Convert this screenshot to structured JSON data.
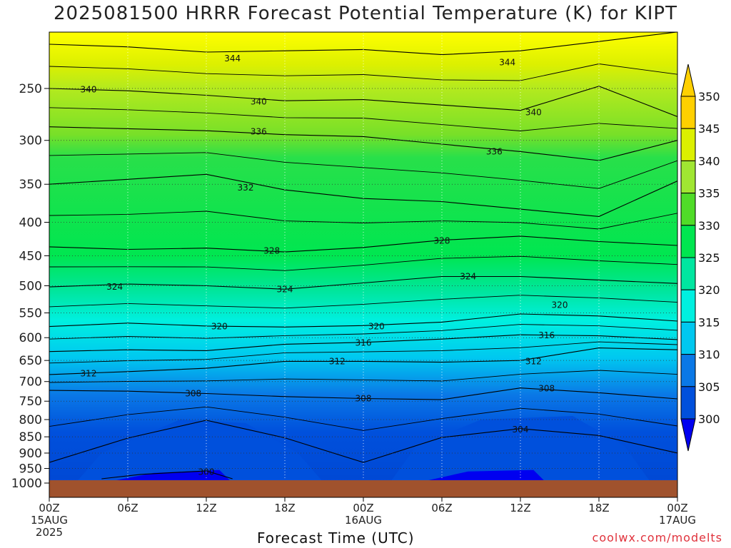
{
  "title": "2025081500 HRRR Forecast Potential Temperature (K) for KIPT",
  "xlabel": "Forecast Time (UTC)",
  "credit": "coolwx.com/modelts",
  "colors": {
    "300": "#0000f0",
    "305": "#0050dc",
    "310": "#0a78e6",
    "315": "#00c8f0",
    "320": "#00f0e0",
    "325": "#00e6a0",
    "330": "#00e650",
    "335": "#50dc28",
    "340": "#a0e632",
    "345": "#dcf000",
    "350": "#ffd000",
    "ground": "#a0522d"
  },
  "chart_data": {
    "type": "heatmap",
    "title": "2025081500 HRRR Forecast Potential Temperature (K) for KIPT",
    "xlabel": "Forecast Time (UTC)",
    "ylabel": "",
    "y_scale": "log-pressure",
    "y_ticks": [
      250,
      300,
      350,
      400,
      450,
      500,
      550,
      600,
      650,
      700,
      750,
      800,
      850,
      900,
      950,
      1000
    ],
    "x_ticks": [
      {
        "hour": 0,
        "lines": [
          "00Z",
          "15AUG",
          "2025"
        ]
      },
      {
        "hour": 6,
        "lines": [
          "06Z"
        ]
      },
      {
        "hour": 12,
        "lines": [
          "12Z"
        ]
      },
      {
        "hour": 18,
        "lines": [
          "18Z"
        ]
      },
      {
        "hour": 24,
        "lines": [
          "00Z",
          "16AUG"
        ]
      },
      {
        "hour": 30,
        "lines": [
          "06Z"
        ]
      },
      {
        "hour": 36,
        "lines": [
          "12Z"
        ]
      },
      {
        "hour": 42,
        "lines": [
          "18Z"
        ]
      },
      {
        "hour": 48,
        "lines": [
          "00Z",
          "17AUG"
        ]
      }
    ],
    "colorbar": {
      "levels": [
        300,
        305,
        310,
        315,
        320,
        325,
        330,
        335,
        340,
        345,
        350
      ],
      "labels": [
        "300",
        "305",
        "310",
        "315",
        "320",
        "325",
        "330",
        "335",
        "340",
        "345",
        "350"
      ]
    },
    "contour_labels": [
      {
        "value": "344",
        "hour": 14,
        "p": 225
      },
      {
        "value": "344",
        "hour": 35,
        "p": 228
      },
      {
        "value": "340",
        "hour": 3,
        "p": 251
      },
      {
        "value": "340",
        "hour": 16,
        "p": 262
      },
      {
        "value": "340",
        "hour": 37,
        "p": 272
      },
      {
        "value": "336",
        "hour": 16,
        "p": 291
      },
      {
        "value": "336",
        "hour": 34,
        "p": 312
      },
      {
        "value": "332",
        "hour": 15,
        "p": 354
      },
      {
        "value": "328",
        "hour": 17,
        "p": 442
      },
      {
        "value": "328",
        "hour": 30,
        "p": 427
      },
      {
        "value": "324",
        "hour": 5,
        "p": 502
      },
      {
        "value": "324",
        "hour": 18,
        "p": 506
      },
      {
        "value": "324",
        "hour": 32,
        "p": 484
      },
      {
        "value": "320",
        "hour": 13,
        "p": 577
      },
      {
        "value": "320",
        "hour": 25,
        "p": 577
      },
      {
        "value": "320",
        "hour": 39,
        "p": 535
      },
      {
        "value": "316",
        "hour": 24,
        "p": 611
      },
      {
        "value": "316",
        "hour": 38,
        "p": 595
      },
      {
        "value": "312",
        "hour": 3,
        "p": 681
      },
      {
        "value": "312",
        "hour": 22,
        "p": 652
      },
      {
        "value": "312",
        "hour": 37,
        "p": 652
      },
      {
        "value": "308",
        "hour": 11,
        "p": 730
      },
      {
        "value": "308",
        "hour": 24,
        "p": 743
      },
      {
        "value": "308",
        "hour": 38,
        "p": 717
      },
      {
        "value": "304",
        "hour": 36,
        "p": 829
      },
      {
        "value": "300",
        "hour": 12,
        "p": 962
      }
    ],
    "isotherms": [
      {
        "value": 344,
        "pts": [
          [
            0,
            214
          ],
          [
            6,
            216
          ],
          [
            12,
            220
          ],
          [
            18,
            219
          ],
          [
            24,
            218
          ],
          [
            30,
            222
          ],
          [
            36,
            219
          ],
          [
            42,
            212
          ],
          [
            48,
            205
          ]
        ]
      },
      {
        "value": 340,
        "pts": [
          [
            0,
            250
          ],
          [
            6,
            252
          ],
          [
            12,
            256
          ],
          [
            18,
            261
          ],
          [
            24,
            260
          ],
          [
            30,
            265
          ],
          [
            36,
            270
          ],
          [
            42,
            248
          ],
          [
            48,
            276
          ]
        ]
      },
      {
        "value": 336,
        "pts": [
          [
            0,
            286
          ],
          [
            6,
            288
          ],
          [
            12,
            290
          ],
          [
            18,
            294
          ],
          [
            24,
            296
          ],
          [
            30,
            304
          ],
          [
            36,
            312
          ],
          [
            42,
            322
          ],
          [
            48,
            300
          ]
        ]
      },
      {
        "value": 332,
        "pts": [
          [
            0,
            350
          ],
          [
            6,
            344
          ],
          [
            12,
            338
          ],
          [
            18,
            357
          ],
          [
            24,
            368
          ],
          [
            30,
            372
          ],
          [
            36,
            382
          ],
          [
            42,
            392
          ],
          [
            48,
            346
          ]
        ]
      },
      {
        "value": 328,
        "pts": [
          [
            0,
            436
          ],
          [
            6,
            440
          ],
          [
            12,
            438
          ],
          [
            18,
            444
          ],
          [
            24,
            437
          ],
          [
            30,
            426
          ],
          [
            36,
            420
          ],
          [
            42,
            428
          ],
          [
            48,
            434
          ]
        ]
      },
      {
        "value": 324,
        "pts": [
          [
            0,
            502
          ],
          [
            6,
            497
          ],
          [
            12,
            500
          ],
          [
            18,
            506
          ],
          [
            24,
            495
          ],
          [
            30,
            484
          ],
          [
            36,
            484
          ],
          [
            42,
            490
          ],
          [
            48,
            496
          ]
        ]
      },
      {
        "value": 320,
        "pts": [
          [
            0,
            577
          ],
          [
            6,
            570
          ],
          [
            12,
            576
          ],
          [
            18,
            578
          ],
          [
            24,
            575
          ],
          [
            30,
            568
          ],
          [
            36,
            552
          ],
          [
            42,
            556
          ],
          [
            48,
            566
          ]
        ]
      },
      {
        "value": 316,
        "pts": [
          [
            0,
            630
          ],
          [
            6,
            626
          ],
          [
            12,
            628
          ],
          [
            18,
            614
          ],
          [
            24,
            610
          ],
          [
            30,
            603
          ],
          [
            36,
            594
          ],
          [
            42,
            596
          ],
          [
            48,
            604
          ]
        ]
      },
      {
        "value": 312,
        "pts": [
          [
            0,
            683
          ],
          [
            6,
            676
          ],
          [
            12,
            668
          ],
          [
            18,
            652
          ],
          [
            24,
            652
          ],
          [
            30,
            654
          ],
          [
            36,
            650
          ],
          [
            42,
            622
          ],
          [
            48,
            626
          ]
        ]
      },
      {
        "value": 308,
        "pts": [
          [
            0,
            722
          ],
          [
            6,
            724
          ],
          [
            12,
            730
          ],
          [
            18,
            738
          ],
          [
            24,
            743
          ],
          [
            30,
            746
          ],
          [
            36,
            716
          ],
          [
            42,
            728
          ],
          [
            48,
            744
          ]
        ]
      },
      {
        "value": 304,
        "pts": [
          [
            0,
            930
          ],
          [
            6,
            854
          ],
          [
            12,
            802
          ],
          [
            18,
            853
          ],
          [
            24,
            930
          ],
          [
            30,
            852
          ],
          [
            36,
            826
          ],
          [
            42,
            846
          ],
          [
            48,
            900
          ]
        ]
      },
      {
        "value": 300,
        "pts": [
          [
            4,
            985
          ],
          [
            7,
            970
          ],
          [
            12,
            958
          ],
          [
            14,
            985
          ]
        ]
      }
    ]
  }
}
